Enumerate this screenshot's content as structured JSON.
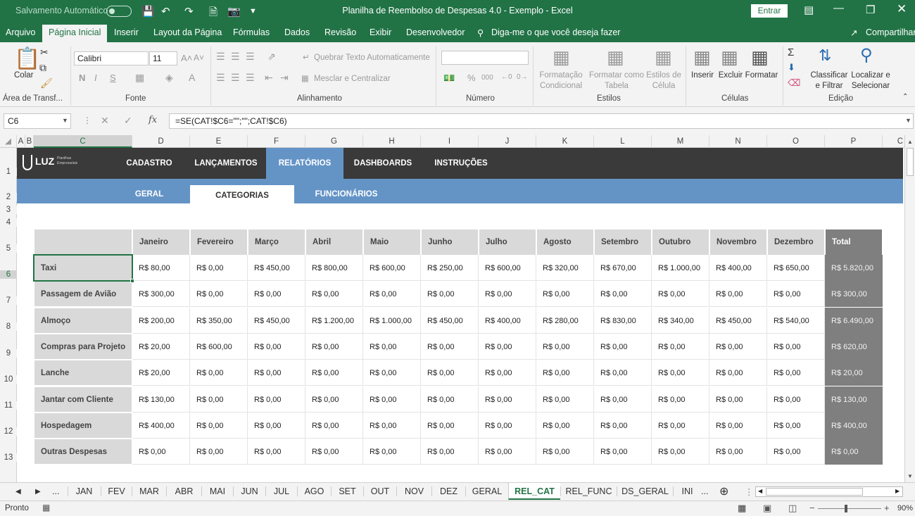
{
  "titlebar": {
    "autosave": "Salvamento Automático",
    "title": "Planilha de Reembolso de Despesas 4.0 - Exemplo  -  Excel",
    "signin": "Entrar"
  },
  "menu": {
    "tabs": [
      "Arquivo",
      "Página Inicial",
      "Inserir",
      "Layout da Página",
      "Fórmulas",
      "Dados",
      "Revisão",
      "Exibir",
      "Desenvolvedor"
    ],
    "tellme": "Diga-me o que você deseja fazer",
    "share": "Compartilhar"
  },
  "ribbon": {
    "clipboard": {
      "paste": "Colar",
      "group": "Área de Transf..."
    },
    "font": {
      "name": "Calibri",
      "size": "11",
      "group": "Fonte"
    },
    "alignment": {
      "wrap": "Quebrar Texto Automaticamente",
      "merge": "Mesclar e Centralizar",
      "group": "Alinhamento"
    },
    "number": {
      "group": "Número"
    },
    "styles": {
      "conditional": [
        "Formatação",
        "Condicional"
      ],
      "table": [
        "Formatar como",
        "Tabela"
      ],
      "cell": [
        "Estilos de",
        "Célula"
      ],
      "group": "Estilos"
    },
    "cells": {
      "insert": "Inserir",
      "delete": "Excluir",
      "format": "Formatar",
      "group": "Células"
    },
    "editing": {
      "sort": [
        "Classificar",
        "e Filtrar"
      ],
      "find": [
        "Localizar e",
        "Selecionar"
      ],
      "group": "Edição"
    }
  },
  "formulabar": {
    "namebox": "C6",
    "formula": "=SE(CAT!$C6=\"\";\"\";CAT!$C6)"
  },
  "columns": [
    "A",
    "B",
    "C",
    "D",
    "E",
    "F",
    "G",
    "H",
    "I",
    "J",
    "K",
    "L",
    "M",
    "N",
    "O",
    "P",
    "C"
  ],
  "rows": [
    "1",
    "2",
    "3",
    "4",
    "5",
    "6",
    "7",
    "8",
    "9",
    "10",
    "11",
    "12",
    "13"
  ],
  "logo": {
    "text": "LUZ",
    "sub1": "Planilhas",
    "sub2": "Empresariais"
  },
  "nav": {
    "main": [
      "CADASTRO",
      "LANÇAMENTOS",
      "RELATÓRIOS",
      "DASHBOARDS",
      "INSTRUÇÕES"
    ],
    "sub": [
      "GERAL",
      "CATEGORIAS",
      "FUNCIONÁRIOS"
    ]
  },
  "table": {
    "headers": [
      "Janeiro",
      "Fevereiro",
      "Março",
      "Abril",
      "Maio",
      "Junho",
      "Julho",
      "Agosto",
      "Setembro",
      "Outubro",
      "Novembro",
      "Dezembro",
      "Total"
    ],
    "rows": [
      {
        "label": "Taxi",
        "values": [
          "R$ 80,00",
          "R$ 0,00",
          "R$ 450,00",
          "R$ 800,00",
          "R$ 600,00",
          "R$ 250,00",
          "R$ 600,00",
          "R$ 320,00",
          "R$ 670,00",
          "R$ 1.000,00",
          "R$ 400,00",
          "R$ 650,00",
          "R$ 5.820,00"
        ]
      },
      {
        "label": "Passagem de Avião",
        "values": [
          "R$ 300,00",
          "R$ 0,00",
          "R$ 0,00",
          "R$ 0,00",
          "R$ 0,00",
          "R$ 0,00",
          "R$ 0,00",
          "R$ 0,00",
          "R$ 0,00",
          "R$ 0,00",
          "R$ 0,00",
          "R$ 0,00",
          "R$ 300,00"
        ]
      },
      {
        "label": "Almoço",
        "values": [
          "R$ 200,00",
          "R$ 350,00",
          "R$ 450,00",
          "R$ 1.200,00",
          "R$ 1.000,00",
          "R$ 450,00",
          "R$ 400,00",
          "R$ 280,00",
          "R$ 830,00",
          "R$ 340,00",
          "R$ 450,00",
          "R$ 540,00",
          "R$ 6.490,00"
        ]
      },
      {
        "label": "Compras para Projeto",
        "values": [
          "R$ 20,00",
          "R$ 600,00",
          "R$ 0,00",
          "R$ 0,00",
          "R$ 0,00",
          "R$ 0,00",
          "R$ 0,00",
          "R$ 0,00",
          "R$ 0,00",
          "R$ 0,00",
          "R$ 0,00",
          "R$ 0,00",
          "R$ 620,00"
        ]
      },
      {
        "label": "Lanche",
        "values": [
          "R$ 20,00",
          "R$ 0,00",
          "R$ 0,00",
          "R$ 0,00",
          "R$ 0,00",
          "R$ 0,00",
          "R$ 0,00",
          "R$ 0,00",
          "R$ 0,00",
          "R$ 0,00",
          "R$ 0,00",
          "R$ 0,00",
          "R$ 20,00"
        ]
      },
      {
        "label": "Jantar com Cliente",
        "values": [
          "R$ 130,00",
          "R$ 0,00",
          "R$ 0,00",
          "R$ 0,00",
          "R$ 0,00",
          "R$ 0,00",
          "R$ 0,00",
          "R$ 0,00",
          "R$ 0,00",
          "R$ 0,00",
          "R$ 0,00",
          "R$ 0,00",
          "R$ 130,00"
        ]
      },
      {
        "label": "Hospedagem",
        "values": [
          "R$ 400,00",
          "R$ 0,00",
          "R$ 0,00",
          "R$ 0,00",
          "R$ 0,00",
          "R$ 0,00",
          "R$ 0,00",
          "R$ 0,00",
          "R$ 0,00",
          "R$ 0,00",
          "R$ 0,00",
          "R$ 0,00",
          "R$ 400,00"
        ]
      },
      {
        "label": "Outras Despesas",
        "values": [
          "R$ 0,00",
          "R$ 0,00",
          "R$ 0,00",
          "R$ 0,00",
          "R$ 0,00",
          "R$ 0,00",
          "R$ 0,00",
          "R$ 0,00",
          "R$ 0,00",
          "R$ 0,00",
          "R$ 0,00",
          "R$ 0,00",
          "R$ 0,00"
        ]
      }
    ]
  },
  "sheets": [
    "JAN",
    "FEV",
    "MAR",
    "ABR",
    "MAI",
    "JUN",
    "JUL",
    "AGO",
    "SET",
    "OUT",
    "NOV",
    "DEZ",
    "GERAL",
    "REL_CAT",
    "REL_FUNC",
    "DS_GERAL",
    "INI"
  ],
  "sheets_ellipsis": "...",
  "status": {
    "ready": "Pronto",
    "zoom": "90%"
  }
}
